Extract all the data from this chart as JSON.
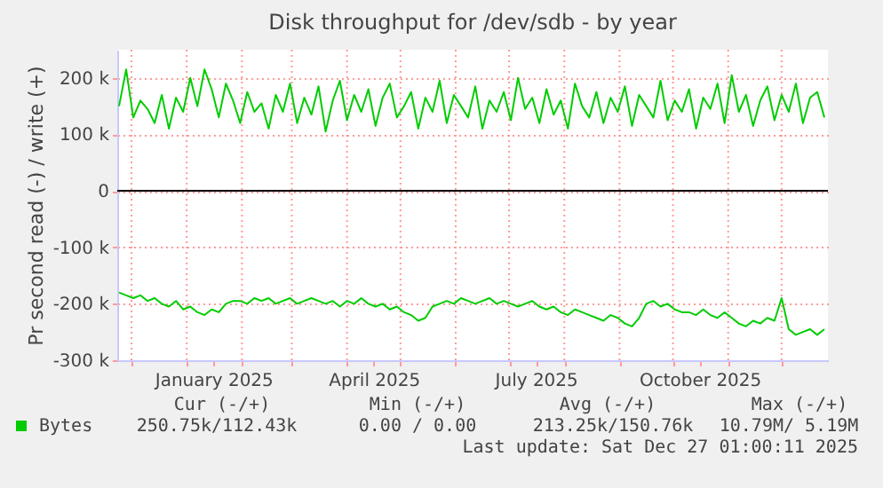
{
  "chart_data": {
    "type": "line",
    "title": "Disk throughput for /dev/sdb - by year",
    "ylabel": "Pr second read (-) / write (+)",
    "x": [
      "2024-11-24",
      "2024-11-28",
      "2024-12-02",
      "2024-12-06",
      "2024-12-10",
      "2024-12-14",
      "2024-12-18",
      "2024-12-22",
      "2024-12-26",
      "2024-12-30",
      "2025-01-03",
      "2025-01-07",
      "2025-01-11",
      "2025-01-15",
      "2025-01-19",
      "2025-01-23",
      "2025-01-27",
      "2025-01-31",
      "2025-02-04",
      "2025-02-08",
      "2025-02-12",
      "2025-02-16",
      "2025-02-20",
      "2025-02-24",
      "2025-02-28",
      "2025-03-04",
      "2025-03-08",
      "2025-03-12",
      "2025-03-16",
      "2025-03-20",
      "2025-03-24",
      "2025-03-28",
      "2025-04-01",
      "2025-04-05",
      "2025-04-09",
      "2025-04-13",
      "2025-04-17",
      "2025-04-21",
      "2025-04-25",
      "2025-04-29",
      "2025-05-03",
      "2025-05-07",
      "2025-05-11",
      "2025-05-15",
      "2025-05-19",
      "2025-05-23",
      "2025-05-27",
      "2025-05-31",
      "2025-06-04",
      "2025-06-08",
      "2025-06-12",
      "2025-06-16",
      "2025-06-20",
      "2025-06-24",
      "2025-06-28",
      "2025-07-02",
      "2025-07-06",
      "2025-07-10",
      "2025-07-14",
      "2025-07-18",
      "2025-07-22",
      "2025-07-26",
      "2025-07-30",
      "2025-08-03",
      "2025-08-07",
      "2025-08-11",
      "2025-08-15",
      "2025-08-19",
      "2025-08-23",
      "2025-08-27",
      "2025-08-31",
      "2025-09-04",
      "2025-09-08",
      "2025-09-12",
      "2025-09-16",
      "2025-09-20",
      "2025-09-24",
      "2025-09-28",
      "2025-10-02",
      "2025-10-06",
      "2025-10-10",
      "2025-10-14",
      "2025-10-18",
      "2025-10-22",
      "2025-10-26",
      "2025-10-30",
      "2025-11-03",
      "2025-11-07",
      "2025-11-11",
      "2025-11-15",
      "2025-11-19",
      "2025-11-23",
      "2025-11-27",
      "2025-12-01",
      "2025-12-05",
      "2025-12-09",
      "2025-12-13",
      "2025-12-17",
      "2025-12-21",
      "2025-12-25"
    ],
    "series": [
      {
        "name": "Bytes",
        "color": "#00cc00",
        "values": [
          150000,
          215000,
          130000,
          160000,
          145000,
          120000,
          170000,
          110000,
          165000,
          140000,
          200000,
          150000,
          215000,
          180000,
          130000,
          190000,
          160000,
          120000,
          175000,
          140000,
          155000,
          110000,
          170000,
          140000,
          190000,
          120000,
          165000,
          135000,
          185000,
          105000,
          160000,
          195000,
          125000,
          170000,
          140000,
          180000,
          115000,
          165000,
          190000,
          130000,
          150000,
          175000,
          110000,
          165000,
          140000,
          195000,
          120000,
          170000,
          150000,
          130000,
          185000,
          110000,
          160000,
          140000,
          175000,
          125000,
          200000,
          145000,
          165000,
          120000,
          180000,
          135000,
          160000,
          110000,
          190000,
          150000,
          130000,
          175000,
          120000,
          165000,
          140000,
          185000,
          115000,
          170000,
          150000,
          130000,
          195000,
          125000,
          160000,
          140000,
          180000,
          110000,
          165000,
          145000,
          190000,
          120000,
          205000,
          140000,
          170000,
          115000,
          160000,
          185000,
          125000,
          170000,
          140000,
          190000,
          120000,
          165000,
          175000,
          130000
        ]
      },
      {
        "color": "#00cc00",
        "values": [
          -180000,
          -185000,
          -190000,
          -185000,
          -195000,
          -190000,
          -200000,
          -205000,
          -195000,
          -210000,
          -205000,
          -215000,
          -220000,
          -210000,
          -215000,
          -200000,
          -195000,
          -195000,
          -200000,
          -190000,
          -195000,
          -190000,
          -200000,
          -195000,
          -190000,
          -200000,
          -195000,
          -190000,
          -195000,
          -200000,
          -195000,
          -205000,
          -195000,
          -200000,
          -190000,
          -200000,
          -205000,
          -200000,
          -210000,
          -205000,
          -215000,
          -220000,
          -230000,
          -225000,
          -205000,
          -200000,
          -195000,
          -200000,
          -190000,
          -195000,
          -200000,
          -195000,
          -190000,
          -200000,
          -195000,
          -200000,
          -205000,
          -200000,
          -195000,
          -205000,
          -210000,
          -205000,
          -215000,
          -220000,
          -210000,
          -215000,
          -220000,
          -225000,
          -230000,
          -220000,
          -225000,
          -235000,
          -240000,
          -225000,
          -200000,
          -195000,
          -205000,
          -200000,
          -210000,
          -215000,
          -215000,
          -220000,
          -210000,
          -220000,
          -225000,
          -215000,
          -225000,
          -235000,
          -240000,
          -230000,
          -235000,
          -225000,
          -230000,
          -190000,
          -245000,
          -255000,
          -250000,
          -245000,
          -255000,
          -245000
        ]
      }
    ],
    "xlim": [
      "2024-11-23",
      "2025-12-27"
    ],
    "xticks": [
      {
        "value": "2024-12-01",
        "label": null
      },
      {
        "value": "2025-01-01",
        "label": null
      },
      {
        "value": "2025-01-16",
        "label": "January 2025"
      },
      {
        "value": "2025-02-01",
        "label": null
      },
      {
        "value": "2025-03-01",
        "label": null
      },
      {
        "value": "2025-04-01",
        "label": null
      },
      {
        "value": "2025-04-16",
        "label": "April 2025"
      },
      {
        "value": "2025-05-01",
        "label": null
      },
      {
        "value": "2025-06-01",
        "label": null
      },
      {
        "value": "2025-07-01",
        "label": null
      },
      {
        "value": "2025-07-16",
        "label": "July 2025"
      },
      {
        "value": "2025-08-01",
        "label": null
      },
      {
        "value": "2025-09-01",
        "label": null
      },
      {
        "value": "2025-10-01",
        "label": null
      },
      {
        "value": "2025-10-16",
        "label": "October 2025"
      },
      {
        "value": "2025-11-01",
        "label": null
      },
      {
        "value": "2025-12-01",
        "label": null
      }
    ],
    "ylim": [
      -300000,
      250000
    ],
    "yticks": [
      {
        "value": -300000,
        "label": "-300 k"
      },
      {
        "value": -200000,
        "label": "-200 k"
      },
      {
        "value": -100000,
        "label": "-100 k"
      },
      0,
      {
        "value": 100000,
        "label": "100 k"
      },
      {
        "value": 200000,
        "label": "200 k"
      }
    ],
    "ref_lines": [
      {
        "axis": "y",
        "value": 0,
        "color": "#000000"
      }
    ],
    "grid": true,
    "legend": "bottom left",
    "marker": "none",
    "line_style": "solid",
    "annotations": [
      "Cur (-/+)",
      "Min (-/+)",
      "Avg (-/+)",
      "Max (-/+)",
      "250.75k/112.43k",
      "0.00 /  0.00",
      "213.25k/150.76k",
      "10.79M/  5.19M",
      "Last update: Sat Dec 27 01:00:11 2025"
    ]
  }
}
